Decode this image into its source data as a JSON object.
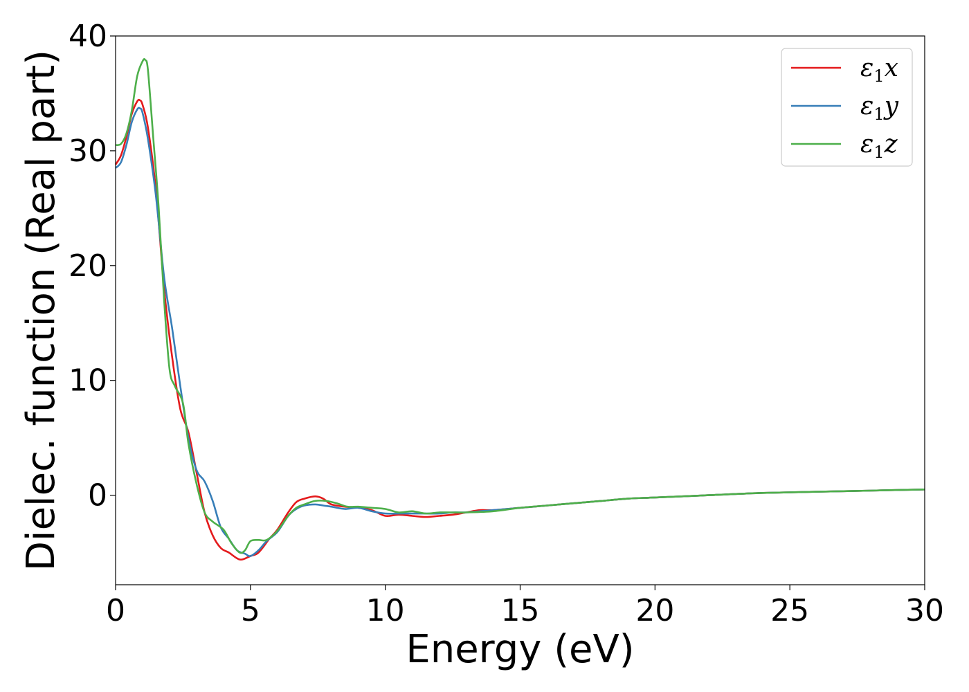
{
  "chart_data": {
    "type": "line",
    "title": "",
    "xlabel": "Energy (eV)",
    "ylabel": "Dielec. function (Real part)",
    "xlim": [
      0,
      30
    ],
    "ylim": [
      -7.8,
      40
    ],
    "xticks": [
      0,
      5,
      10,
      15,
      20,
      25,
      30
    ],
    "yticks": [
      0,
      10,
      20,
      30,
      40
    ],
    "grid": false,
    "legend": "top-right",
    "series": [
      {
        "name": "ε1x",
        "legend_symbol": "ε",
        "legend_sub": "1",
        "legend_var": "x",
        "color": "#e41a1c",
        "x": [
          0,
          0.2,
          0.4,
          0.6,
          0.8,
          0.9,
          1.0,
          1.2,
          1.5,
          1.8,
          2.1,
          2.4,
          2.7,
          3.0,
          3.3,
          3.6,
          3.9,
          4.2,
          4.5,
          4.7,
          5.0,
          5.3,
          5.7,
          6.0,
          6.4,
          6.7,
          7.0,
          7.4,
          7.7,
          8.0,
          8.5,
          9.0,
          9.5,
          10.0,
          10.5,
          11.0,
          11.5,
          12.0,
          12.5,
          13.0,
          13.5,
          14.0,
          15.0,
          16.0,
          17.0,
          18.0,
          19.0,
          20.0,
          22.0,
          24.0,
          26.0,
          28.0,
          30.0
        ],
        "y": [
          28.8,
          29.6,
          31.2,
          33.2,
          34.3,
          34.4,
          34.0,
          32.0,
          26.5,
          18.0,
          12.0,
          7.5,
          5.5,
          2.0,
          -1.5,
          -3.5,
          -4.6,
          -5.0,
          -5.5,
          -5.6,
          -5.3,
          -5.0,
          -3.8,
          -3.0,
          -1.5,
          -0.6,
          -0.3,
          -0.1,
          -0.3,
          -0.8,
          -1.0,
          -1.1,
          -1.3,
          -1.8,
          -1.7,
          -1.8,
          -1.9,
          -1.8,
          -1.7,
          -1.5,
          -1.3,
          -1.3,
          -1.1,
          -0.9,
          -0.7,
          -0.5,
          -0.3,
          -0.2,
          0.0,
          0.2,
          0.3,
          0.4,
          0.5
        ]
      },
      {
        "name": "ε1y",
        "legend_symbol": "ε",
        "legend_sub": "1",
        "legend_var": "y",
        "color": "#377eb8",
        "x": [
          0,
          0.2,
          0.4,
          0.6,
          0.8,
          0.9,
          1.0,
          1.2,
          1.5,
          1.8,
          2.1,
          2.4,
          2.7,
          3.0,
          3.3,
          3.6,
          3.9,
          4.2,
          4.5,
          4.8,
          5.0,
          5.3,
          5.6,
          6.0,
          6.4,
          6.7,
          7.0,
          7.4,
          7.7,
          8.0,
          8.5,
          9.0,
          9.5,
          10.0,
          10.5,
          11.0,
          11.5,
          12.0,
          12.5,
          13.0,
          13.5,
          14.0,
          15.0,
          16.0,
          17.0,
          18.0,
          19.0,
          20.0,
          22.0,
          24.0,
          26.0,
          28.0,
          30.0
        ],
        "y": [
          28.5,
          29.0,
          30.5,
          32.5,
          33.6,
          33.7,
          33.3,
          31.0,
          26.0,
          19.0,
          14.5,
          9.5,
          5.0,
          2.2,
          1.2,
          -0.5,
          -2.8,
          -3.8,
          -4.8,
          -5.1,
          -5.3,
          -4.8,
          -4.0,
          -3.2,
          -1.8,
          -1.2,
          -0.9,
          -0.8,
          -0.9,
          -1.0,
          -1.2,
          -1.1,
          -1.4,
          -1.6,
          -1.6,
          -1.6,
          -1.6,
          -1.6,
          -1.5,
          -1.5,
          -1.4,
          -1.3,
          -1.1,
          -0.9,
          -0.7,
          -0.5,
          -0.3,
          -0.2,
          0.0,
          0.2,
          0.3,
          0.4,
          0.5
        ]
      },
      {
        "name": "ε1z",
        "legend_symbol": "ε",
        "legend_sub": "1",
        "legend_var": "z",
        "color": "#4daf4a",
        "x": [
          0,
          0.2,
          0.4,
          0.6,
          0.8,
          1.0,
          1.1,
          1.2,
          1.4,
          1.6,
          1.8,
          2.0,
          2.2,
          2.5,
          2.7,
          3.0,
          3.3,
          3.6,
          4.0,
          4.3,
          4.6,
          4.8,
          5.0,
          5.3,
          5.6,
          6.0,
          6.4,
          6.7,
          7.0,
          7.4,
          7.8,
          8.2,
          8.6,
          9.0,
          9.5,
          10.0,
          10.5,
          11.0,
          11.5,
          12.0,
          12.5,
          13.0,
          14.0,
          15.0,
          16.0,
          17.0,
          18.0,
          19.0,
          20.0,
          22.0,
          24.0,
          26.0,
          28.0,
          30.0
        ],
        "y": [
          30.5,
          30.6,
          31.5,
          33.5,
          36.5,
          37.8,
          37.9,
          37.0,
          31.0,
          25.0,
          17.0,
          11.0,
          9.5,
          8.0,
          4.5,
          1.0,
          -1.5,
          -2.3,
          -3.0,
          -4.2,
          -5.0,
          -4.8,
          -4.0,
          -3.9,
          -3.9,
          -3.1,
          -1.8,
          -1.1,
          -0.8,
          -0.5,
          -0.5,
          -0.7,
          -1.0,
          -1.0,
          -1.1,
          -1.2,
          -1.5,
          -1.4,
          -1.6,
          -1.5,
          -1.5,
          -1.5,
          -1.4,
          -1.1,
          -0.9,
          -0.7,
          -0.5,
          -0.3,
          -0.2,
          0.0,
          0.2,
          0.3,
          0.4,
          0.5
        ]
      }
    ]
  }
}
